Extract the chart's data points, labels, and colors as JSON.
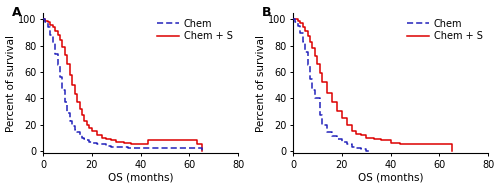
{
  "panel_A_label": "A",
  "panel_B_label": "B",
  "xlabel": "OS (months)",
  "ylabel": "Percent of survival",
  "xlim": [
    0,
    80
  ],
  "ylim": [
    -2,
    105
  ],
  "yticks": [
    0,
    20,
    40,
    60,
    80,
    100
  ],
  "xticks": [
    0,
    20,
    40,
    60,
    80
  ],
  "legend_labels": [
    "Chem",
    "Chem + S"
  ],
  "chem_color": "#2222bb",
  "chems_color": "#dd0000",
  "panel_A": {
    "chem_x": [
      0,
      1,
      2,
      3,
      4,
      5,
      6,
      7,
      8,
      9,
      10,
      11,
      12,
      13,
      14,
      15,
      16,
      17,
      18,
      19,
      20,
      22,
      24,
      26,
      28,
      30,
      35,
      40,
      45,
      65
    ],
    "chem_y": [
      100,
      98,
      94,
      88,
      82,
      74,
      65,
      56,
      46,
      37,
      29,
      23,
      19,
      16,
      14,
      12,
      10,
      9,
      8,
      7,
      6,
      5,
      5,
      4,
      3,
      3,
      2,
      2,
      2,
      0
    ],
    "chems_x": [
      0,
      1,
      2,
      3,
      4,
      5,
      6,
      7,
      8,
      9,
      10,
      11,
      12,
      13,
      14,
      15,
      16,
      17,
      18,
      19,
      20,
      22,
      24,
      26,
      28,
      30,
      33,
      36,
      40,
      43,
      46,
      50,
      55,
      60,
      63,
      65
    ],
    "chems_y": [
      100,
      99,
      98,
      96,
      94,
      91,
      88,
      84,
      79,
      73,
      66,
      58,
      50,
      43,
      37,
      32,
      27,
      23,
      20,
      17,
      15,
      12,
      10,
      9,
      8,
      7,
      6,
      5,
      5,
      8,
      8,
      8,
      8,
      8,
      5,
      0
    ]
  },
  "panel_B": {
    "chem_x": [
      0,
      1,
      2,
      3,
      4,
      5,
      6,
      7,
      8,
      9,
      10,
      11,
      12,
      14,
      16,
      18,
      20,
      22,
      24,
      26,
      28,
      30,
      32
    ],
    "chem_y": [
      100,
      98,
      95,
      90,
      83,
      75,
      65,
      55,
      46,
      40,
      40,
      27,
      20,
      14,
      11,
      9,
      7,
      5,
      3,
      2,
      1,
      0,
      0
    ],
    "chems_x": [
      0,
      1,
      2,
      3,
      4,
      5,
      6,
      7,
      8,
      9,
      10,
      11,
      12,
      14,
      16,
      18,
      20,
      22,
      24,
      26,
      28,
      30,
      33,
      36,
      40,
      44,
      48,
      55,
      60,
      63,
      65
    ],
    "chems_y": [
      100,
      100,
      99,
      97,
      94,
      91,
      87,
      83,
      78,
      72,
      66,
      59,
      52,
      44,
      37,
      30,
      25,
      20,
      15,
      13,
      12,
      10,
      9,
      8,
      6,
      5,
      5,
      5,
      5,
      5,
      0
    ]
  },
  "tick_fontsize": 7,
  "label_fontsize": 7.5,
  "legend_fontsize": 7,
  "panel_label_fontsize": 9,
  "linewidth": 1.1
}
